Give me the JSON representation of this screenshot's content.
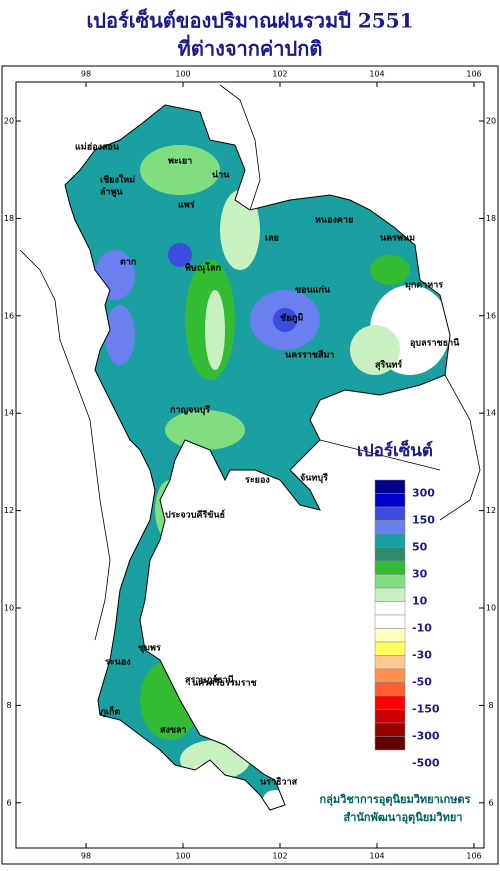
{
  "title": [
    "เปอร์เซ็นต์ของปริมาณฝนรวมปี  2551",
    "ที่ต่างจากค่าปกติ"
  ],
  "lon_ticks": [
    98,
    100,
    102,
    104,
    106
  ],
  "lat_ticks": [
    20,
    18,
    16,
    14,
    12,
    10,
    8,
    6
  ],
  "legend": {
    "title": "เปอร์เซ็นต์",
    "colors": [
      "#00008b",
      "#0000cd",
      "#3a4de0",
      "#6a7ff0",
      "#1aa0a0",
      "#2e8b6b",
      "#33bb33",
      "#80dd80",
      "#c8f0c0",
      "#ffffff",
      "#ffffff",
      "#ffffc0",
      "#ffff60",
      "#ffc890",
      "#ff9050",
      "#ff6030",
      "#ff0000",
      "#cc0000",
      "#990000",
      "#660000"
    ],
    "labels": [
      300,
      150,
      50,
      30,
      10,
      -10,
      -30,
      -50,
      -150,
      -300,
      -500
    ]
  },
  "places": [
    "แม่ฮ่องสอน",
    "เชียงใหม่",
    "ลำพูน",
    "พะเยา",
    "น่าน",
    "แพร่",
    "ตาก",
    "พิษณุโลก",
    "เลย",
    "หนองคาย",
    "นครพนม",
    "ขอนแก่น",
    "ชัยภูมิ",
    "มุกดาหาร",
    "อุบลราชธานี",
    "นครราชสีมา",
    "สุรินทร์",
    "กาญจนบุรี",
    "ประจวบคีรีขันธ์",
    "ชุมพร",
    "ระนอง",
    "สุราษฎร์ธานี",
    "นครศรีธรรมราช",
    "ภูเก็ต",
    "สงขลา",
    "นราธิวาส",
    "ระยอง",
    "จันทบุรี"
  ],
  "credit": [
    "กลุ่มวิชาการอุตุนิยมวิทยาเกษตร",
    "สำนักพัฒนาอุตุนิยมวิทยา"
  ]
}
